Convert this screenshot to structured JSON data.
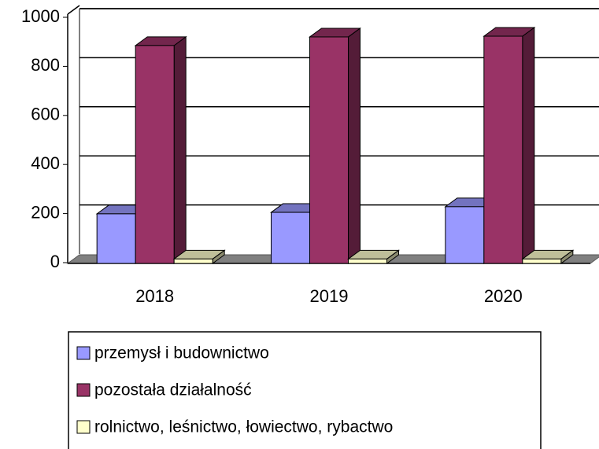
{
  "chart_data": {
    "type": "bar",
    "categories": [
      "2018",
      "2019",
      "2020"
    ],
    "series": [
      {
        "name": "przemysł i budownictwo",
        "color": "#9999ff",
        "values": [
          199,
          205,
          228
        ]
      },
      {
        "name": "pozostała działalność",
        "color": "#993366",
        "values": [
          885,
          920,
          923
        ]
      },
      {
        "name": "rolnictwo, leśnictwo, łowiectwo, rybactwo",
        "color": "#ffffcc",
        "values": [
          15,
          15,
          15
        ]
      }
    ],
    "ylim": [
      0,
      1000
    ],
    "yticks": [
      0,
      200,
      400,
      600,
      800,
      1000
    ],
    "grid": true,
    "legend": "bottom"
  }
}
